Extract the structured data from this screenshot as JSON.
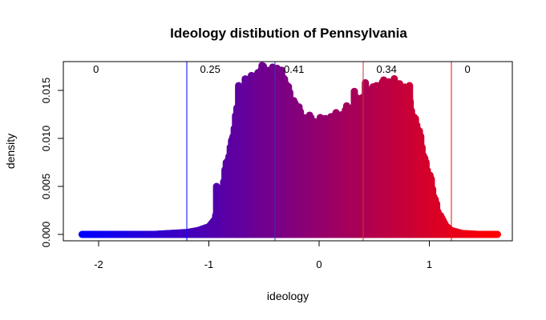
{
  "chart_data": {
    "type": "bar",
    "title": "Ideology distibution of Pennsylvania",
    "xlabel": "ideology",
    "ylabel": "density",
    "xlim": [
      -2.2,
      1.7
    ],
    "ylim": [
      0,
      0.0175
    ],
    "x_ticks": [
      -2,
      -1,
      0,
      1
    ],
    "x_tick_labels": [
      "-2",
      "-1",
      "0",
      "1"
    ],
    "y_ticks": [
      0.0,
      0.005,
      0.01,
      0.015
    ],
    "y_tick_labels": [
      "0.000",
      "0.005",
      "0.010",
      "0.015"
    ],
    "color_low": "#0000ff",
    "color_high": "#ff0000",
    "vertical_lines": [
      {
        "x": -1.2,
        "color": "#0000ff"
      },
      {
        "x": -0.4,
        "color": "#3333cc"
      },
      {
        "x": 0.4,
        "color": "#cc3333"
      },
      {
        "x": 1.2,
        "color": "#ff0000"
      }
    ],
    "segment_labels": [
      {
        "x": -2.05,
        "text": "0"
      },
      {
        "x": -1.08,
        "text": "0.25"
      },
      {
        "x": -0.32,
        "text": "0.41"
      },
      {
        "x": 0.52,
        "text": "0.34"
      },
      {
        "x": 1.32,
        "text": "0"
      }
    ],
    "density_points": [
      [
        -2.15,
        0.0
      ],
      [
        -1.8,
        0.0
      ],
      [
        -1.5,
        0.0
      ],
      [
        -1.35,
        0.0001
      ],
      [
        -1.2,
        0.0002
      ],
      [
        -1.1,
        0.0004
      ],
      [
        -1.0,
        0.0008
      ],
      [
        -0.95,
        0.0015
      ],
      [
        -0.9,
        0.0035
      ],
      [
        -0.85,
        0.0065
      ],
      [
        -0.8,
        0.0095
      ],
      [
        -0.75,
        0.0125
      ],
      [
        -0.7,
        0.0145
      ],
      [
        -0.65,
        0.0158
      ],
      [
        -0.6,
        0.0163
      ],
      [
        -0.55,
        0.0168
      ],
      [
        -0.5,
        0.0172
      ],
      [
        -0.45,
        0.0171
      ],
      [
        -0.4,
        0.0168
      ],
      [
        -0.35,
        0.0164
      ],
      [
        -0.3,
        0.0156
      ],
      [
        -0.25,
        0.0144
      ],
      [
        -0.2,
        0.013
      ],
      [
        -0.15,
        0.0123
      ],
      [
        -0.1,
        0.0119
      ],
      [
        -0.05,
        0.0117
      ],
      [
        0.0,
        0.0117
      ],
      [
        0.05,
        0.0118
      ],
      [
        0.1,
        0.012
      ],
      [
        0.15,
        0.0122
      ],
      [
        0.2,
        0.0124
      ],
      [
        0.25,
        0.0128
      ],
      [
        0.3,
        0.0132
      ],
      [
        0.35,
        0.0137
      ],
      [
        0.4,
        0.0142
      ],
      [
        0.45,
        0.0147
      ],
      [
        0.5,
        0.0151
      ],
      [
        0.55,
        0.0154
      ],
      [
        0.6,
        0.0156
      ],
      [
        0.65,
        0.0157
      ],
      [
        0.7,
        0.0156
      ],
      [
        0.75,
        0.0153
      ],
      [
        0.8,
        0.0146
      ],
      [
        0.85,
        0.0128
      ],
      [
        0.9,
        0.0108
      ],
      [
        0.95,
        0.0085
      ],
      [
        1.0,
        0.006
      ],
      [
        1.05,
        0.0038
      ],
      [
        1.1,
        0.002
      ],
      [
        1.15,
        0.0009
      ],
      [
        1.2,
        0.0004
      ],
      [
        1.3,
        0.0001
      ],
      [
        1.45,
        0.0
      ],
      [
        1.62,
        0.0
      ]
    ],
    "spikes": [
      {
        "x": -0.93,
        "y": 0.005
      },
      {
        "x": -0.73,
        "y": 0.0155
      },
      {
        "x": -0.67,
        "y": 0.0162
      },
      {
        "x": -0.52,
        "y": 0.0172
      },
      {
        "x": -0.47,
        "y": 0.017
      },
      {
        "x": -0.38,
        "y": 0.0173
      },
      {
        "x": -0.34,
        "y": 0.0171
      },
      {
        "x": 0.32,
        "y": 0.0149
      },
      {
        "x": 0.42,
        "y": 0.0158
      },
      {
        "x": 0.52,
        "y": 0.0155
      },
      {
        "x": 0.63,
        "y": 0.0159
      },
      {
        "x": 0.73,
        "y": 0.0157
      },
      {
        "x": 0.82,
        "y": 0.0155
      }
    ]
  }
}
